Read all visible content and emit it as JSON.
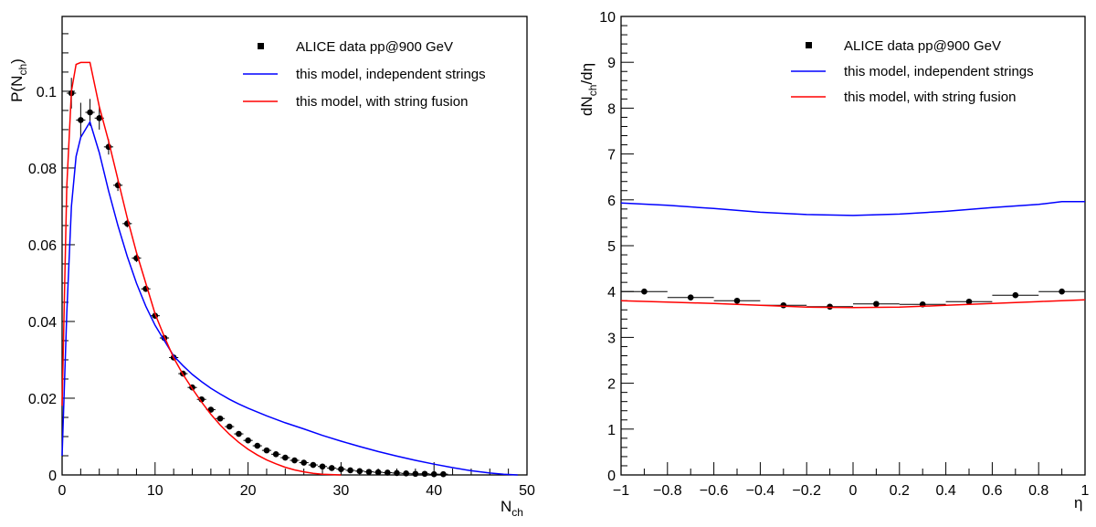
{
  "chart_data": [
    {
      "type": "line",
      "ylabel_main": "P(N",
      "ylabel_sub": "ch",
      "ylabel_end": ")",
      "xlabel_main": "N",
      "xlabel_sub": "ch",
      "xlim": [
        0,
        50
      ],
      "ylim": [
        0,
        0.1195
      ],
      "xticks": [
        0,
        10,
        20,
        30,
        40,
        50
      ],
      "xtick_labels": [
        "0",
        "10",
        "20",
        "30",
        "40",
        "50"
      ],
      "yticks": [
        0,
        0.02,
        0.04,
        0.06,
        0.08,
        0.1
      ],
      "ytick_labels": [
        "0",
        "0.02",
        "0.04",
        "0.06",
        "0.08",
        "0.1"
      ],
      "legend_position": "top-right",
      "grid": false,
      "series": [
        {
          "name": "ALICE data pp@900 GeV",
          "kind": "points",
          "color": "#000000",
          "x": [
            1,
            2,
            3,
            4,
            5,
            6,
            7,
            8,
            9,
            10,
            11,
            12,
            13,
            14,
            15,
            16,
            17,
            18,
            19,
            20,
            21,
            22,
            23,
            24,
            25,
            26,
            27,
            28,
            29,
            30,
            31,
            32,
            33,
            34,
            35,
            36,
            37,
            38,
            39,
            40,
            41
          ],
          "y": [
            0.0995,
            0.0925,
            0.0945,
            0.093,
            0.0855,
            0.0755,
            0.0655,
            0.0565,
            0.0485,
            0.0415,
            0.0357,
            0.0306,
            0.0264,
            0.0228,
            0.0197,
            0.017,
            0.0147,
            0.0126,
            0.0107,
            0.009,
            0.0076,
            0.0064,
            0.0054,
            0.0045,
            0.0038,
            0.0032,
            0.0026,
            0.0022,
            0.0018,
            0.0015,
            0.0012,
            0.001,
            0.0008,
            0.0007,
            0.0006,
            0.0005,
            0.0004,
            0.0003,
            0.0003,
            0.0002,
            0.0002
          ],
          "yerr": [
            0.004,
            0.0045,
            0.0035,
            0.003,
            0.002,
            0.0015,
            0.001,
            0.001,
            0.0008,
            0.0008,
            0.0006,
            0.0005,
            0.0004,
            0.0004,
            0.0003,
            0.0003,
            0.0003,
            0.0002,
            0.0002,
            0.0002,
            0.0002,
            0.0002,
            0.0001,
            0.0001,
            0.0001,
            0.0001,
            0.0001,
            0.0001,
            0.0001,
            0.0001,
            0.0001,
            0.0001,
            0.0001,
            0.0001,
            0.0001,
            0.0001,
            0.0001,
            0.0001,
            0.0001,
            0.0001,
            0.0001
          ]
        },
        {
          "name": "this model, independent strings",
          "kind": "line",
          "color": "#0000ff",
          "x": [
            0,
            0.5,
            1,
            1.5,
            2,
            2.5,
            3,
            4,
            5,
            6,
            7,
            8,
            9,
            10,
            11,
            12,
            13,
            14,
            15,
            16,
            17,
            18,
            19,
            20,
            22,
            24,
            26,
            28,
            30,
            32,
            34,
            36,
            38,
            40,
            42,
            44,
            46,
            47.5,
            49
          ],
          "y": [
            0.005,
            0.042,
            0.07,
            0.083,
            0.088,
            0.09,
            0.092,
            0.084,
            0.074,
            0.065,
            0.057,
            0.05,
            0.044,
            0.039,
            0.035,
            0.031,
            0.0285,
            0.0262,
            0.0243,
            0.0226,
            0.0211,
            0.0197,
            0.0185,
            0.0174,
            0.0154,
            0.0136,
            0.012,
            0.0103,
            0.0088,
            0.0074,
            0.0061,
            0.0049,
            0.0038,
            0.0028,
            0.0019,
            0.0011,
            0.0005,
            0.0002,
            0.0
          ]
        },
        {
          "name": "this model, with string fusion",
          "kind": "line",
          "color": "#ff0000",
          "x": [
            0,
            0.5,
            1,
            1.5,
            2,
            2.5,
            3,
            4,
            5,
            6,
            7,
            8,
            9,
            10,
            11,
            12,
            13,
            14,
            15,
            16,
            17,
            18,
            19,
            20,
            21,
            22,
            23,
            24,
            25,
            26,
            27,
            28,
            29,
            30
          ],
          "y": [
            0.018,
            0.075,
            0.1,
            0.107,
            0.1075,
            0.1075,
            0.1075,
            0.096,
            0.087,
            0.077,
            0.067,
            0.058,
            0.05,
            0.042,
            0.036,
            0.0305,
            0.0262,
            0.0225,
            0.019,
            0.0158,
            0.013,
            0.0106,
            0.0085,
            0.0067,
            0.0052,
            0.0039,
            0.0029,
            0.002,
            0.0013,
            0.0008,
            0.0004,
            0.0002,
            0.0001,
            0.0
          ]
        }
      ]
    },
    {
      "type": "line",
      "ylabel_main": "dN",
      "ylabel_sub": "ch",
      "ylabel_end": "/dη",
      "xlabel_main": "η",
      "xlabel_sub": "",
      "xlim": [
        -1,
        1
      ],
      "ylim": [
        0,
        10
      ],
      "xticks": [
        -1,
        -0.8,
        -0.6,
        -0.4,
        -0.2,
        0,
        0.2,
        0.4,
        0.6,
        0.8,
        1
      ],
      "xtick_labels": [
        "−1",
        "−0.8",
        "−0.6",
        "−0.4",
        "−0.2",
        "0",
        "0.2",
        "0.4",
        "0.6",
        "0.8",
        "1"
      ],
      "yticks": [
        0,
        1,
        2,
        3,
        4,
        5,
        6,
        7,
        8,
        9,
        10
      ],
      "ytick_labels": [
        "0",
        "1",
        "2",
        "3",
        "4",
        "5",
        "6",
        "7",
        "8",
        "9",
        "10"
      ],
      "legend_position": "top-right",
      "grid": false,
      "series": [
        {
          "name": "ALICE data pp@900 GeV",
          "kind": "points",
          "color": "#000000",
          "x": [
            -0.9,
            -0.7,
            -0.5,
            -0.3,
            -0.1,
            0.1,
            0.3,
            0.5,
            0.7,
            0.9
          ],
          "y": [
            4.0,
            3.87,
            3.8,
            3.7,
            3.67,
            3.73,
            3.72,
            3.78,
            3.92,
            4.0
          ],
          "xerr": 0.1,
          "yerr": 0.05
        },
        {
          "name": "this model, independent strings",
          "kind": "line",
          "color": "#0000ff",
          "x": [
            -1,
            -0.8,
            -0.6,
            -0.4,
            -0.2,
            0,
            0.2,
            0.4,
            0.6,
            0.8,
            0.9,
            1
          ],
          "y": [
            5.93,
            5.88,
            5.81,
            5.73,
            5.68,
            5.66,
            5.69,
            5.75,
            5.83,
            5.9,
            5.96,
            5.96
          ]
        },
        {
          "name": "this model, with string fusion",
          "kind": "line",
          "color": "#ff0000",
          "x": [
            -1,
            -0.8,
            -0.6,
            -0.4,
            -0.2,
            0,
            0.2,
            0.4,
            0.6,
            0.8,
            1
          ],
          "y": [
            3.8,
            3.77,
            3.74,
            3.7,
            3.66,
            3.65,
            3.66,
            3.7,
            3.74,
            3.78,
            3.82
          ]
        }
      ]
    }
  ]
}
